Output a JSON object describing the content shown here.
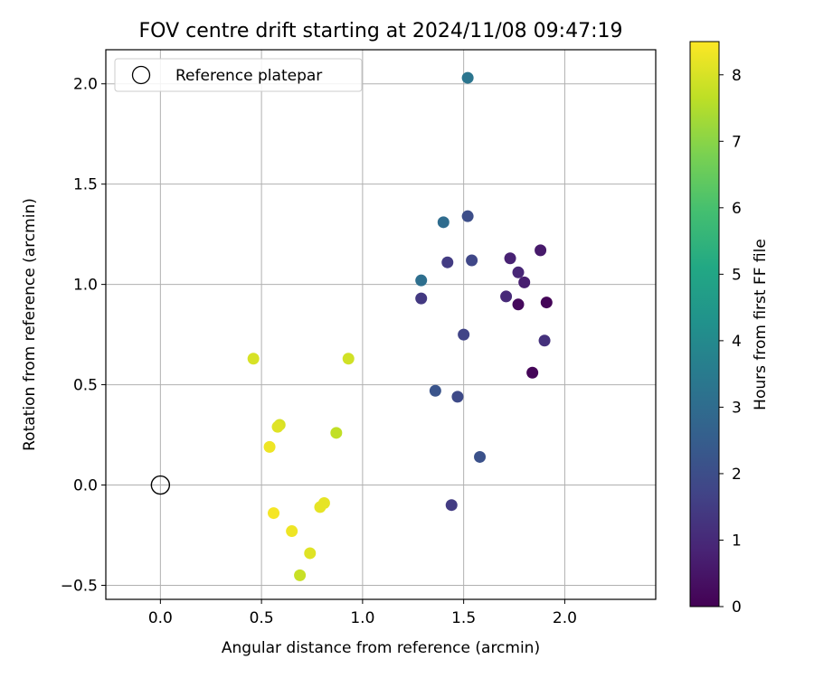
{
  "chart_data": {
    "type": "scatter",
    "title": "FOV centre drift starting at 2024/11/08 09:47:19",
    "xlabel": "Angular distance from reference (arcmin)",
    "ylabel": "Rotation from reference (arcmin)",
    "xlim": [
      -0.27,
      2.45
    ],
    "ylim": [
      -0.57,
      2.17
    ],
    "xticks": [
      0.0,
      0.5,
      1.0,
      1.5,
      2.0
    ],
    "xtick_labels": [
      "0.0",
      "0.5",
      "1.0",
      "1.5",
      "2.0"
    ],
    "yticks": [
      -0.5,
      0.0,
      0.5,
      1.0,
      1.5,
      2.0
    ],
    "ytick_labels": [
      "−0.5",
      "0.0",
      "0.5",
      "1.0",
      "1.5",
      "2.0"
    ],
    "grid": true,
    "legend": {
      "placement": "top-left",
      "entries": [
        "Reference platepar"
      ]
    },
    "reference_point": {
      "x": 0.0,
      "y": 0.0,
      "label": "Reference platepar"
    },
    "colorbar": {
      "label": "Hours from first FF file",
      "range": [
        0,
        8.5
      ],
      "ticks": [
        0,
        1,
        2,
        3,
        4,
        5,
        6,
        7,
        8
      ],
      "tick_labels": [
        "0",
        "1",
        "2",
        "3",
        "4",
        "5",
        "6",
        "7",
        "8"
      ],
      "colormap": "viridis"
    },
    "points": [
      {
        "x": 1.84,
        "y": 0.56,
        "c": 0.1
      },
      {
        "x": 1.91,
        "y": 0.91,
        "c": 0.1
      },
      {
        "x": 1.77,
        "y": 0.9,
        "c": 0.2
      },
      {
        "x": 1.88,
        "y": 1.17,
        "c": 0.6
      },
      {
        "x": 1.8,
        "y": 1.01,
        "c": 0.7
      },
      {
        "x": 1.73,
        "y": 1.13,
        "c": 0.8
      },
      {
        "x": 1.77,
        "y": 1.06,
        "c": 0.9
      },
      {
        "x": 1.71,
        "y": 0.94,
        "c": 1.0
      },
      {
        "x": 1.9,
        "y": 0.72,
        "c": 1.2
      },
      {
        "x": 1.29,
        "y": 0.93,
        "c": 1.4
      },
      {
        "x": 1.42,
        "y": 1.11,
        "c": 1.5
      },
      {
        "x": 1.44,
        "y": -0.1,
        "c": 1.5
      },
      {
        "x": 1.5,
        "y": 0.75,
        "c": 1.7
      },
      {
        "x": 1.54,
        "y": 1.12,
        "c": 1.8
      },
      {
        "x": 1.47,
        "y": 0.44,
        "c": 1.9
      },
      {
        "x": 1.52,
        "y": 1.34,
        "c": 2.0
      },
      {
        "x": 1.58,
        "y": 0.14,
        "c": 2.1
      },
      {
        "x": 1.36,
        "y": 0.47,
        "c": 2.2
      },
      {
        "x": 1.4,
        "y": 1.31,
        "c": 3.0
      },
      {
        "x": 1.29,
        "y": 1.02,
        "c": 3.1
      },
      {
        "x": 1.52,
        "y": 2.03,
        "c": 3.3
      },
      {
        "x": 0.87,
        "y": 0.26,
        "c": 7.7
      },
      {
        "x": 0.69,
        "y": -0.45,
        "c": 7.8
      },
      {
        "x": 0.93,
        "y": 0.63,
        "c": 7.9
      },
      {
        "x": 0.46,
        "y": 0.63,
        "c": 8.0
      },
      {
        "x": 0.59,
        "y": 0.3,
        "c": 8.0
      },
      {
        "x": 0.74,
        "y": -0.34,
        "c": 8.1
      },
      {
        "x": 0.58,
        "y": 0.29,
        "c": 8.1
      },
      {
        "x": 0.81,
        "y": -0.09,
        "c": 8.2
      },
      {
        "x": 0.79,
        "y": -0.11,
        "c": 8.2
      },
      {
        "x": 0.65,
        "y": -0.23,
        "c": 8.3
      },
      {
        "x": 0.54,
        "y": 0.19,
        "c": 8.3
      },
      {
        "x": 0.56,
        "y": -0.14,
        "c": 8.4
      }
    ]
  }
}
